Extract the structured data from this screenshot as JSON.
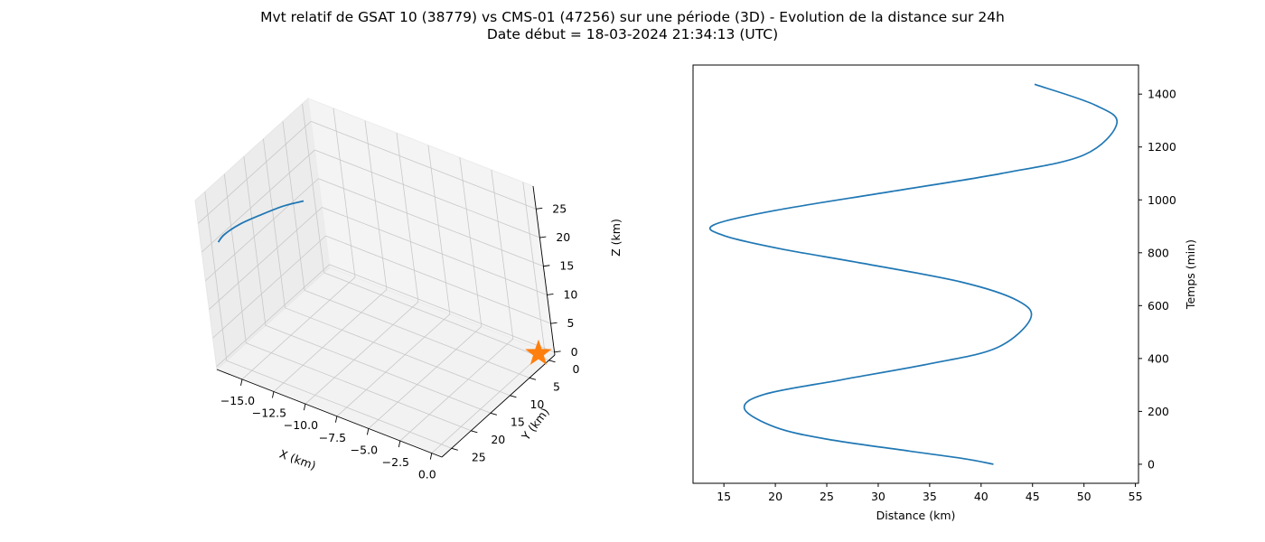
{
  "title_line1": "Mvt relatif de GSAT 10 (38779) vs CMS-01 (47256) sur une période (3D) - Evolution de la distance sur 24h",
  "title_line2": "Date début = 18-03-2024 21:34:13 (UTC)",
  "colors": {
    "trajectory": "#1f77b4",
    "marker": "#ff7f0e",
    "pane": "#f2f2f2",
    "grid": "#c8c8c8"
  },
  "chart_data": [
    {
      "type": "line3d",
      "xlabel": "X (km)",
      "ylabel": "Y (km)",
      "zlabel": "Z (km)",
      "xlim": [
        -17,
        0.8
      ],
      "ylim": [
        -1.5,
        27.5
      ],
      "zlim": [
        -0.5,
        29
      ],
      "xticks": [
        "−15.0",
        "−12.5",
        "−10.0",
        "−7.5",
        "−5.0",
        "−2.5",
        "0.0"
      ],
      "yticks": [
        "0",
        "5",
        "10",
        "15",
        "20",
        "25"
      ],
      "zticks": [
        "0",
        "5",
        "10",
        "15",
        "20",
        "25"
      ],
      "grid": true,
      "series": [
        {
          "x": [
            -16.5,
            -16.2,
            -15.5,
            -14.5,
            -13.5,
            -12.5
          ],
          "y": [
            24.8,
            24.0,
            22.0,
            19.5,
            17.0,
            15.0
          ],
          "z": [
            20.5,
            21.6,
            22.8,
            23.8,
            24.6,
            25.1
          ]
        }
      ],
      "marker": {
        "x": 0,
        "y": 0,
        "z": 0,
        "symbol": "star"
      }
    },
    {
      "type": "line",
      "xlabel": "Distance (km)",
      "ylabel": "Temps (min)",
      "xlim": [
        12,
        55.3
      ],
      "ylim": [
        -72,
        1510
      ],
      "xticks": [
        15,
        20,
        25,
        30,
        35,
        40,
        45,
        50,
        55
      ],
      "yticks": [
        0,
        200,
        400,
        600,
        800,
        1000,
        1200,
        1400
      ],
      "yaxis_side": "right",
      "series": [
        {
          "x": [
            41.2,
            38.5,
            33.0,
            25.0,
            20.0,
            17.0,
            19.0,
            26.5,
            35.0,
            41.5,
            44.8,
            43.5,
            38.0,
            28.5,
            20.5,
            15.0,
            14.0,
            20.0,
            31.0,
            42.0,
            50.0,
            53.2,
            51.0,
            45.2
          ],
          "y": [
            0,
            20,
            50,
            95,
            140,
            210,
            265,
            320,
            380,
            440,
            550,
            620,
            690,
            760,
            815,
            865,
            905,
            960,
            1030,
            1100,
            1170,
            1290,
            1360,
            1437
          ]
        }
      ]
    }
  ]
}
